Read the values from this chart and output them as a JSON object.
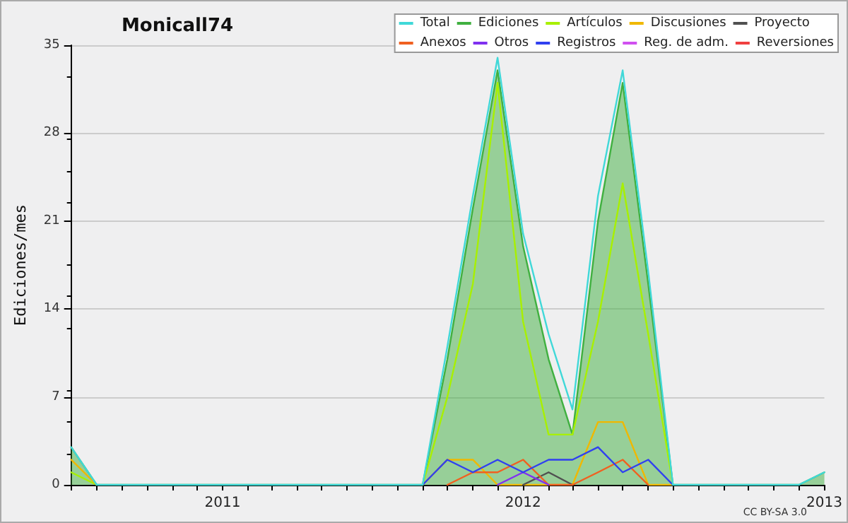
{
  "chart_data": {
    "type": "line",
    "title": "Monicall74",
    "ylabel": "Ediciones/mes",
    "annotations": [
      "CC BY-SA 3.0"
    ],
    "x": [
      "2010-07",
      "2010-08",
      "2010-09",
      "2010-10",
      "2010-11",
      "2010-12",
      "2011-01",
      "2011-02",
      "2011-03",
      "2011-04",
      "2011-05",
      "2011-06",
      "2011-07",
      "2011-08",
      "2011-09",
      "2011-10",
      "2011-11",
      "2011-12",
      "2012-01",
      "2012-02",
      "2012-03",
      "2012-04",
      "2012-05",
      "2012-06",
      "2012-07",
      "2012-08",
      "2012-09",
      "2012-10",
      "2012-11",
      "2012-12",
      "2013-01"
    ],
    "series": [
      {
        "name": "Total",
        "color": "#40d8d8",
        "values": [
          3,
          0,
          0,
          0,
          0,
          0,
          0,
          0,
          0,
          0,
          0,
          0,
          0,
          0,
          0,
          11,
          23,
          34,
          20,
          12,
          6,
          23,
          33,
          17,
          0,
          0,
          0,
          0,
          0,
          0,
          1
        ]
      },
      {
        "name": "Ediciones",
        "type": "area",
        "color": "#40b040",
        "values": [
          3,
          0,
          0,
          0,
          0,
          0,
          0,
          0,
          0,
          0,
          0,
          0,
          0,
          0,
          0,
          10,
          22,
          33,
          19,
          10,
          4,
          21,
          32,
          16,
          0,
          0,
          0,
          0,
          0,
          0,
          1
        ]
      },
      {
        "name": "Artículos",
        "color": "#a8f000",
        "values": [
          1,
          0,
          null,
          null,
          null,
          null,
          null,
          null,
          null,
          null,
          null,
          null,
          null,
          null,
          0,
          7,
          16,
          32,
          13,
          4,
          4,
          13,
          24,
          12,
          0,
          null,
          null,
          null,
          null,
          null,
          null
        ]
      },
      {
        "name": "Discusiones",
        "color": "#f0b800",
        "values": [
          2,
          0,
          null,
          null,
          null,
          null,
          null,
          null,
          null,
          null,
          null,
          null,
          null,
          null,
          0,
          2,
          2,
          0,
          0,
          0,
          0,
          5,
          5,
          0,
          0,
          null,
          null,
          null,
          null,
          null,
          null
        ]
      },
      {
        "name": "Proyecto",
        "color": "#505050",
        "values": [
          null,
          null,
          null,
          null,
          null,
          null,
          null,
          null,
          null,
          null,
          null,
          null,
          null,
          null,
          null,
          null,
          null,
          null,
          0,
          1,
          0,
          null,
          null,
          null,
          null,
          null,
          null,
          null,
          null,
          null,
          null
        ]
      },
      {
        "name": "Anexos",
        "color": "#f06020",
        "values": [
          null,
          null,
          null,
          null,
          null,
          null,
          null,
          null,
          null,
          null,
          null,
          null,
          null,
          null,
          null,
          0,
          1,
          1,
          2,
          0,
          0,
          1,
          2,
          0,
          null,
          null,
          null,
          null,
          null,
          null,
          null
        ]
      },
      {
        "name": "Otros",
        "color": "#8030f0",
        "values": [
          null,
          null,
          null,
          null,
          null,
          null,
          null,
          null,
          null,
          null,
          null,
          null,
          null,
          null,
          null,
          null,
          null,
          0,
          1,
          0,
          null,
          null,
          null,
          null,
          null,
          null,
          null,
          null,
          null,
          null,
          null
        ]
      },
      {
        "name": "Registros",
        "color": "#3040f0",
        "values": [
          null,
          null,
          null,
          null,
          null,
          null,
          null,
          null,
          null,
          null,
          null,
          null,
          null,
          null,
          0,
          2,
          1,
          2,
          1,
          2,
          2,
          3,
          1,
          2,
          0,
          null,
          null,
          null,
          null,
          null,
          null
        ]
      },
      {
        "name": "Reg. de adm.",
        "color": "#d050f0",
        "values": [
          null,
          null,
          null,
          null,
          null,
          null,
          null,
          null,
          null,
          null,
          null,
          null,
          null,
          null,
          null,
          null,
          null,
          null,
          null,
          null,
          null,
          null,
          null,
          null,
          null,
          null,
          null,
          null,
          null,
          null,
          null
        ]
      },
      {
        "name": "Reversiones",
        "color": "#f04040",
        "values": [
          null,
          null,
          null,
          null,
          null,
          null,
          null,
          null,
          null,
          null,
          null,
          null,
          null,
          null,
          null,
          null,
          null,
          null,
          null,
          null,
          null,
          null,
          null,
          null,
          null,
          null,
          null,
          null,
          null,
          null,
          null
        ]
      }
    ],
    "xlim": [
      "2010-07",
      "2013-01"
    ],
    "xticks": [
      {
        "value": "2010-07",
        "label": null
      },
      {
        "value": "2010-08",
        "label": null
      },
      {
        "value": "2010-09",
        "label": null
      },
      {
        "value": "2010-10",
        "label": null
      },
      {
        "value": "2010-11",
        "label": null
      },
      {
        "value": "2010-12",
        "label": null
      },
      {
        "value": "2011-01",
        "label": "2011"
      },
      {
        "value": "2011-02",
        "label": null
      },
      {
        "value": "2011-03",
        "label": null
      },
      {
        "value": "2011-04",
        "label": null
      },
      {
        "value": "2011-05",
        "label": null
      },
      {
        "value": "2011-06",
        "label": null
      },
      {
        "value": "2011-07",
        "label": null
      },
      {
        "value": "2011-08",
        "label": null
      },
      {
        "value": "2011-09",
        "label": null
      },
      {
        "value": "2011-10",
        "label": null
      },
      {
        "value": "2011-11",
        "label": null
      },
      {
        "value": "2011-12",
        "label": null
      },
      {
        "value": "2012-01",
        "label": "2012"
      },
      {
        "value": "2012-02",
        "label": null
      },
      {
        "value": "2012-03",
        "label": null
      },
      {
        "value": "2012-04",
        "label": null
      },
      {
        "value": "2012-05",
        "label": null
      },
      {
        "value": "2012-06",
        "label": null
      },
      {
        "value": "2012-07",
        "label": null
      },
      {
        "value": "2012-08",
        "label": null
      },
      {
        "value": "2012-09",
        "label": null
      },
      {
        "value": "2012-10",
        "label": null
      },
      {
        "value": "2012-11",
        "label": null
      },
      {
        "value": "2012-12",
        "label": null
      },
      {
        "value": "2013-01",
        "label": "2013"
      }
    ],
    "ylim": [
      0,
      35
    ],
    "yticks": [
      0,
      7,
      14,
      21,
      28,
      35
    ],
    "grid": "y",
    "legend": "top right",
    "marker": "none",
    "line_style": "solid"
  }
}
